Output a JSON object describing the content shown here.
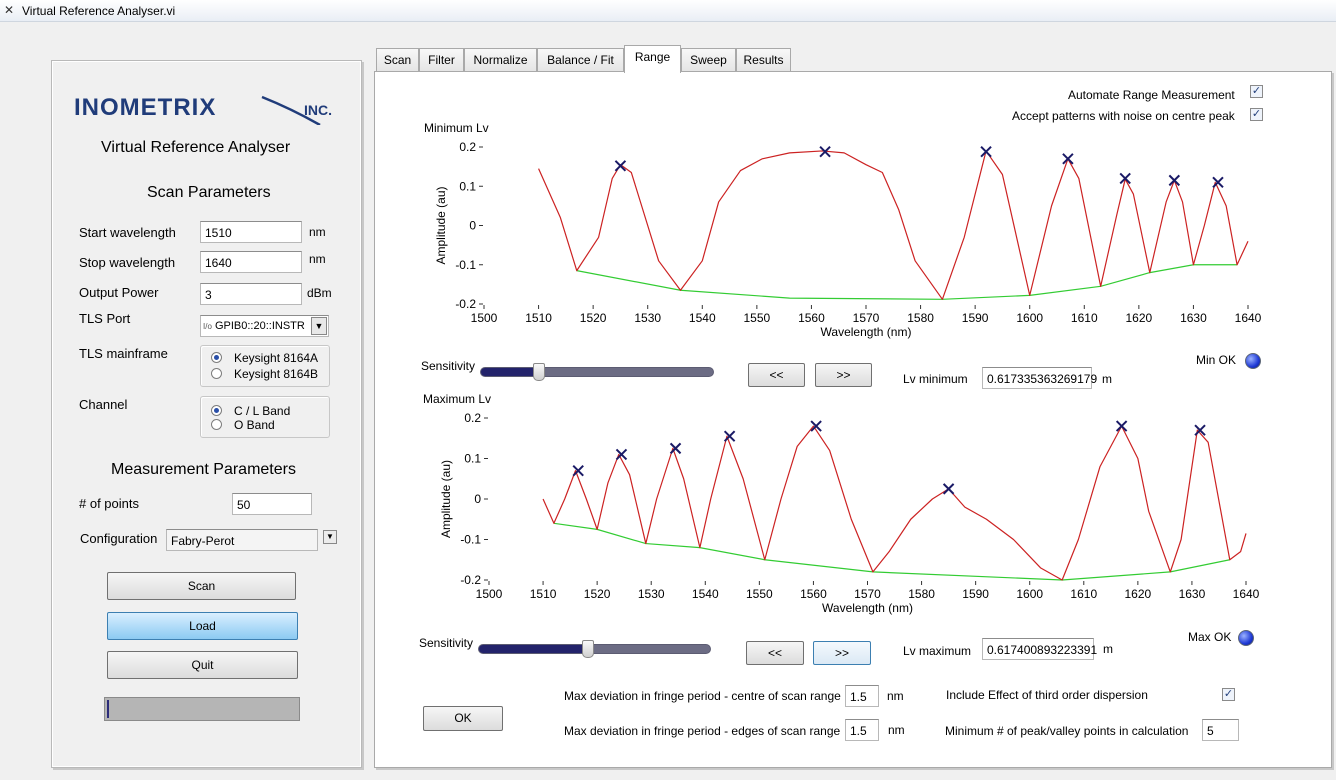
{
  "window": {
    "title": "Virtual Reference Analyser.vi"
  },
  "left_panel": {
    "logo_text": "INOMETRIX",
    "logo_suffix": "INC.",
    "app_title": "Virtual Reference Analyser",
    "scan_params_heading": "Scan Parameters",
    "start_wavelength": {
      "label": "Start wavelength",
      "value": "1510",
      "unit": "nm"
    },
    "stop_wavelength": {
      "label": "Stop wavelength",
      "value": "1640",
      "unit": "nm"
    },
    "output_power": {
      "label": "Output Power",
      "value": "3",
      "unit": "dBm"
    },
    "tls_port": {
      "label": "TLS Port",
      "prefix": "I/o",
      "value": "GPIB0::20::INSTR"
    },
    "tls_mainframe": {
      "label": "TLS mainframe",
      "options": [
        "Keysight 8164A",
        "Keysight 8164B"
      ],
      "selected": 0
    },
    "channel": {
      "label": "Channel",
      "options": [
        "C / L Band",
        "O Band"
      ],
      "selected": 0
    },
    "measurement_heading": "Measurement Parameters",
    "num_points": {
      "label": "# of points",
      "value": "50"
    },
    "configuration": {
      "label": "Configuration",
      "value": "Fabry-Perot"
    },
    "buttons": {
      "scan": "Scan",
      "load": "Load",
      "quit": "Quit"
    },
    "progress_fraction": 0.01
  },
  "tabs": [
    "Scan",
    "Filter",
    "Normalize",
    "Balance / Fit",
    "Range",
    "Sweep",
    "Results"
  ],
  "selected_tab": "Range",
  "range": {
    "automate_label": "Automate Range Measurement",
    "automate_checked": true,
    "accept_noise_label": "Accept patterns with noise on centre peak",
    "accept_noise_checked": true,
    "min_section": {
      "title": "Minimum Lv",
      "sensitivity_label": "Sensitivity",
      "sensitivity_fraction": 0.25,
      "prev_label": "<<",
      "next_label": ">>",
      "lv_label": "Lv minimum",
      "lv_value": "0.617335363269179",
      "lv_unit": "m",
      "status_label": "Min OK",
      "status_color": "#1f3ad6"
    },
    "max_section": {
      "title": "Maximum Lv",
      "sensitivity_label": "Sensitivity",
      "sensitivity_fraction": 0.47,
      "prev_label": "<<",
      "next_label": ">>",
      "lv_label": "Lv maximum",
      "lv_value": "0.617400893223391",
      "lv_unit": "m",
      "status_label": "Max OK",
      "status_color": "#1f3ad6"
    },
    "ok_label": "OK",
    "centre_dev": {
      "label": "Max deviation in fringe period - centre of scan range",
      "value": "1.5",
      "unit": "nm"
    },
    "edge_dev": {
      "label": "Max deviation in fringe period - edges of scan range",
      "value": "1.5",
      "unit": "nm"
    },
    "third_order": {
      "label": "Include Effect of  third order dispersion",
      "checked": true
    },
    "min_points": {
      "label": "Minimum # of peak/valley points in calculation",
      "value": "5"
    }
  },
  "chart_data": [
    {
      "type": "line",
      "title": "Minimum Lv",
      "xlabel": "Wavelength (nm)",
      "ylabel": "Amplitude (au)",
      "xlim": [
        1500,
        1640
      ],
      "ylim": [
        -0.2,
        0.2
      ],
      "xticks": [
        1500,
        1510,
        1520,
        1530,
        1540,
        1550,
        1560,
        1570,
        1580,
        1590,
        1600,
        1610,
        1620,
        1630,
        1640
      ],
      "yticks": [
        -0.2,
        -0.1,
        0,
        0.1,
        0.2
      ],
      "ytick_labels": [
        "-0.2",
        "-0.1",
        "0",
        "0.1",
        "0.2"
      ],
      "signal_color": "#cc2222",
      "baseline_color": "#33cc33",
      "marker_color": "#1a1a66",
      "signal": [
        [
          1510,
          0.145
        ],
        [
          1514,
          0.02
        ],
        [
          1517,
          -0.115
        ],
        [
          1521,
          -0.03
        ],
        [
          1523.5,
          0.12
        ],
        [
          1525,
          0.155
        ],
        [
          1527,
          0.135
        ],
        [
          1532,
          -0.09
        ],
        [
          1536,
          -0.165
        ],
        [
          1540,
          -0.09
        ],
        [
          1543,
          0.06
        ],
        [
          1547,
          0.14
        ],
        [
          1551,
          0.17
        ],
        [
          1556,
          0.185
        ],
        [
          1562,
          0.19
        ],
        [
          1566,
          0.185
        ],
        [
          1570,
          0.155
        ],
        [
          1573,
          0.135
        ],
        [
          1576,
          0.04
        ],
        [
          1579,
          -0.09
        ],
        [
          1584,
          -0.188
        ],
        [
          1588,
          -0.03
        ],
        [
          1592,
          0.19
        ],
        [
          1595,
          0.13
        ],
        [
          1600,
          -0.178
        ],
        [
          1604,
          0.05
        ],
        [
          1607,
          0.17
        ],
        [
          1609,
          0.12
        ],
        [
          1613,
          -0.155
        ],
        [
          1616,
          0.03
        ],
        [
          1617.5,
          0.118
        ],
        [
          1619,
          0.08
        ],
        [
          1622,
          -0.12
        ],
        [
          1625,
          0.06
        ],
        [
          1626.5,
          0.115
        ],
        [
          1628,
          0.06
        ],
        [
          1630,
          -0.1
        ],
        [
          1632,
          0.0
        ],
        [
          1634,
          0.11
        ],
        [
          1636,
          0.05
        ],
        [
          1638,
          -0.1
        ],
        [
          1640,
          -0.04
        ]
      ],
      "baseline": [
        [
          1517,
          -0.115
        ],
        [
          1536,
          -0.165
        ],
        [
          1556,
          -0.185
        ],
        [
          1584,
          -0.188
        ],
        [
          1600,
          -0.178
        ],
        [
          1613,
          -0.155
        ],
        [
          1622,
          -0.12
        ],
        [
          1630,
          -0.1
        ],
        [
          1638,
          -0.1
        ]
      ],
      "peaks": [
        [
          1525,
          0.152
        ],
        [
          1562.5,
          0.188
        ],
        [
          1592,
          0.188
        ],
        [
          1607,
          0.17
        ],
        [
          1617.5,
          0.12
        ],
        [
          1626.5,
          0.115
        ],
        [
          1634.5,
          0.11
        ]
      ]
    },
    {
      "type": "line",
      "title": "Maximum Lv",
      "xlabel": "Wavelength (nm)",
      "ylabel": "Amplitude (au)",
      "xlim": [
        1500,
        1640
      ],
      "ylim": [
        -0.2,
        0.2
      ],
      "xticks": [
        1500,
        1510,
        1520,
        1530,
        1540,
        1550,
        1560,
        1570,
        1580,
        1590,
        1600,
        1610,
        1620,
        1630,
        1640
      ],
      "yticks": [
        -0.2,
        -0.1,
        0,
        0.1,
        0.2
      ],
      "ytick_labels": [
        "-0.2",
        "-0.1",
        "0",
        "0.1",
        "0.2"
      ],
      "signal_color": "#cc2222",
      "baseline_color": "#33cc33",
      "marker_color": "#1a1a66",
      "signal": [
        [
          1510,
          0.0
        ],
        [
          1512,
          -0.06
        ],
        [
          1514,
          0.0
        ],
        [
          1516,
          0.07
        ],
        [
          1518,
          0.0
        ],
        [
          1520,
          -0.075
        ],
        [
          1522,
          0.04
        ],
        [
          1524,
          0.11
        ],
        [
          1526,
          0.06
        ],
        [
          1529,
          -0.11
        ],
        [
          1531,
          0.0
        ],
        [
          1534,
          0.125
        ],
        [
          1536,
          0.05
        ],
        [
          1539,
          -0.12
        ],
        [
          1541,
          0.0
        ],
        [
          1544,
          0.155
        ],
        [
          1547,
          0.05
        ],
        [
          1551,
          -0.15
        ],
        [
          1554,
          0.0
        ],
        [
          1557,
          0.13
        ],
        [
          1560,
          0.18
        ],
        [
          1563,
          0.12
        ],
        [
          1567,
          -0.05
        ],
        [
          1571,
          -0.18
        ],
        [
          1574,
          -0.13
        ],
        [
          1578,
          -0.05
        ],
        [
          1582,
          0.0
        ],
        [
          1585,
          0.025
        ],
        [
          1588,
          -0.02
        ],
        [
          1592,
          -0.05
        ],
        [
          1597,
          -0.1
        ],
        [
          1602,
          -0.17
        ],
        [
          1606,
          -0.2
        ],
        [
          1609,
          -0.1
        ],
        [
          1613,
          0.08
        ],
        [
          1617,
          0.18
        ],
        [
          1620,
          0.1
        ],
        [
          1622,
          -0.03
        ],
        [
          1626,
          -0.18
        ],
        [
          1628,
          -0.1
        ],
        [
          1631,
          0.17
        ],
        [
          1633,
          0.14
        ],
        [
          1637,
          -0.15
        ],
        [
          1639,
          -0.13
        ],
        [
          1640,
          -0.085
        ]
      ],
      "baseline": [
        [
          1512,
          -0.06
        ],
        [
          1520,
          -0.075
        ],
        [
          1529,
          -0.11
        ],
        [
          1539,
          -0.12
        ],
        [
          1551,
          -0.15
        ],
        [
          1571,
          -0.18
        ],
        [
          1606,
          -0.2
        ],
        [
          1626,
          -0.18
        ],
        [
          1637,
          -0.15
        ]
      ],
      "peaks": [
        [
          1516.5,
          0.07
        ],
        [
          1524.5,
          0.11
        ],
        [
          1534.5,
          0.125
        ],
        [
          1544.5,
          0.155
        ],
        [
          1560.5,
          0.18
        ],
        [
          1585,
          0.025
        ],
        [
          1617,
          0.18
        ],
        [
          1631.5,
          0.17
        ]
      ]
    }
  ]
}
